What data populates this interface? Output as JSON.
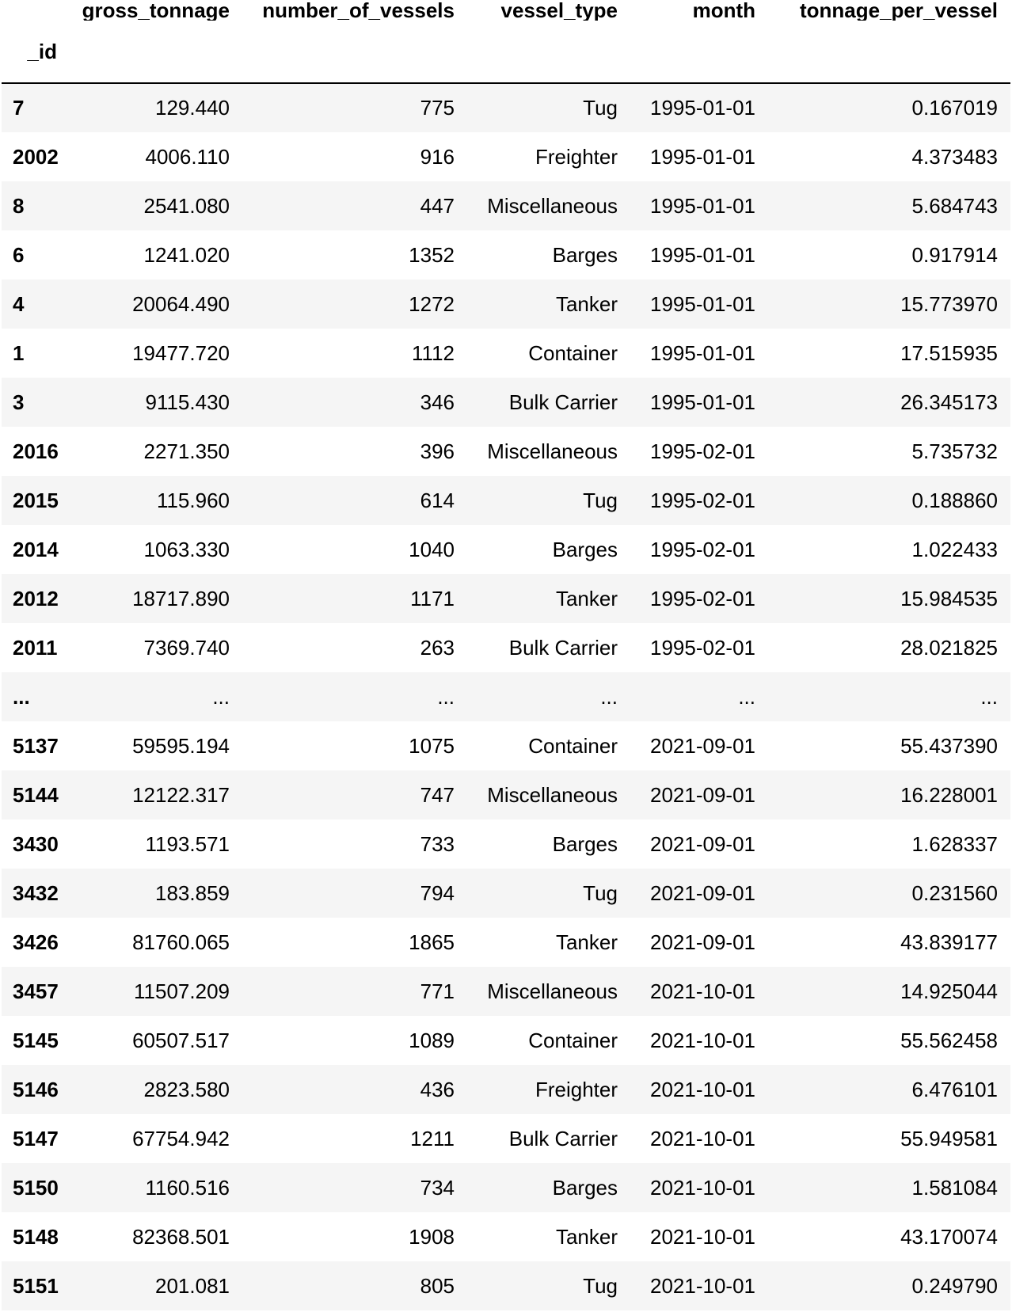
{
  "table": {
    "index_name": "_id",
    "columns": [
      "gross_tonnage",
      "number_of_vessels",
      "vessel_type",
      "month",
      "tonnage_per_vessel"
    ],
    "rows": [
      {
        "id": "7",
        "gross_tonnage": "129.440",
        "number_of_vessels": "775",
        "vessel_type": "Tug",
        "month": "1995-01-01",
        "tonnage_per_vessel": "0.167019"
      },
      {
        "id": "2002",
        "gross_tonnage": "4006.110",
        "number_of_vessels": "916",
        "vessel_type": "Freighter",
        "month": "1995-01-01",
        "tonnage_per_vessel": "4.373483"
      },
      {
        "id": "8",
        "gross_tonnage": "2541.080",
        "number_of_vessels": "447",
        "vessel_type": "Miscellaneous",
        "month": "1995-01-01",
        "tonnage_per_vessel": "5.684743"
      },
      {
        "id": "6",
        "gross_tonnage": "1241.020",
        "number_of_vessels": "1352",
        "vessel_type": "Barges",
        "month": "1995-01-01",
        "tonnage_per_vessel": "0.917914"
      },
      {
        "id": "4",
        "gross_tonnage": "20064.490",
        "number_of_vessels": "1272",
        "vessel_type": "Tanker",
        "month": "1995-01-01",
        "tonnage_per_vessel": "15.773970"
      },
      {
        "id": "1",
        "gross_tonnage": "19477.720",
        "number_of_vessels": "1112",
        "vessel_type": "Container",
        "month": "1995-01-01",
        "tonnage_per_vessel": "17.515935"
      },
      {
        "id": "3",
        "gross_tonnage": "9115.430",
        "number_of_vessels": "346",
        "vessel_type": "Bulk Carrier",
        "month": "1995-01-01",
        "tonnage_per_vessel": "26.345173"
      },
      {
        "id": "2016",
        "gross_tonnage": "2271.350",
        "number_of_vessels": "396",
        "vessel_type": "Miscellaneous",
        "month": "1995-02-01",
        "tonnage_per_vessel": "5.735732"
      },
      {
        "id": "2015",
        "gross_tonnage": "115.960",
        "number_of_vessels": "614",
        "vessel_type": "Tug",
        "month": "1995-02-01",
        "tonnage_per_vessel": "0.188860"
      },
      {
        "id": "2014",
        "gross_tonnage": "1063.330",
        "number_of_vessels": "1040",
        "vessel_type": "Barges",
        "month": "1995-02-01",
        "tonnage_per_vessel": "1.022433"
      },
      {
        "id": "2012",
        "gross_tonnage": "18717.890",
        "number_of_vessels": "1171",
        "vessel_type": "Tanker",
        "month": "1995-02-01",
        "tonnage_per_vessel": "15.984535"
      },
      {
        "id": "2011",
        "gross_tonnage": "7369.740",
        "number_of_vessels": "263",
        "vessel_type": "Bulk Carrier",
        "month": "1995-02-01",
        "tonnage_per_vessel": "28.021825"
      },
      {
        "id": "...",
        "gross_tonnage": "...",
        "number_of_vessels": "...",
        "vessel_type": "...",
        "month": "...",
        "tonnage_per_vessel": "..."
      },
      {
        "id": "5137",
        "gross_tonnage": "59595.194",
        "number_of_vessels": "1075",
        "vessel_type": "Container",
        "month": "2021-09-01",
        "tonnage_per_vessel": "55.437390"
      },
      {
        "id": "5144",
        "gross_tonnage": "12122.317",
        "number_of_vessels": "747",
        "vessel_type": "Miscellaneous",
        "month": "2021-09-01",
        "tonnage_per_vessel": "16.228001"
      },
      {
        "id": "3430",
        "gross_tonnage": "1193.571",
        "number_of_vessels": "733",
        "vessel_type": "Barges",
        "month": "2021-09-01",
        "tonnage_per_vessel": "1.628337"
      },
      {
        "id": "3432",
        "gross_tonnage": "183.859",
        "number_of_vessels": "794",
        "vessel_type": "Tug",
        "month": "2021-09-01",
        "tonnage_per_vessel": "0.231560"
      },
      {
        "id": "3426",
        "gross_tonnage": "81760.065",
        "number_of_vessels": "1865",
        "vessel_type": "Tanker",
        "month": "2021-09-01",
        "tonnage_per_vessel": "43.839177"
      },
      {
        "id": "3457",
        "gross_tonnage": "11507.209",
        "number_of_vessels": "771",
        "vessel_type": "Miscellaneous",
        "month": "2021-10-01",
        "tonnage_per_vessel": "14.925044"
      },
      {
        "id": "5145",
        "gross_tonnage": "60507.517",
        "number_of_vessels": "1089",
        "vessel_type": "Container",
        "month": "2021-10-01",
        "tonnage_per_vessel": "55.562458"
      },
      {
        "id": "5146",
        "gross_tonnage": "2823.580",
        "number_of_vessels": "436",
        "vessel_type": "Freighter",
        "month": "2021-10-01",
        "tonnage_per_vessel": "6.476101"
      },
      {
        "id": "5147",
        "gross_tonnage": "67754.942",
        "number_of_vessels": "1211",
        "vessel_type": "Bulk Carrier",
        "month": "2021-10-01",
        "tonnage_per_vessel": "55.949581"
      },
      {
        "id": "5150",
        "gross_tonnage": "1160.516",
        "number_of_vessels": "734",
        "vessel_type": "Barges",
        "month": "2021-10-01",
        "tonnage_per_vessel": "1.581084"
      },
      {
        "id": "5148",
        "gross_tonnage": "82368.501",
        "number_of_vessels": "1908",
        "vessel_type": "Tanker",
        "month": "2021-10-01",
        "tonnage_per_vessel": "43.170074"
      },
      {
        "id": "5151",
        "gross_tonnage": "201.081",
        "number_of_vessels": "805",
        "vessel_type": "Tug",
        "month": "2021-10-01",
        "tonnage_per_vessel": "0.249790"
      }
    ]
  }
}
